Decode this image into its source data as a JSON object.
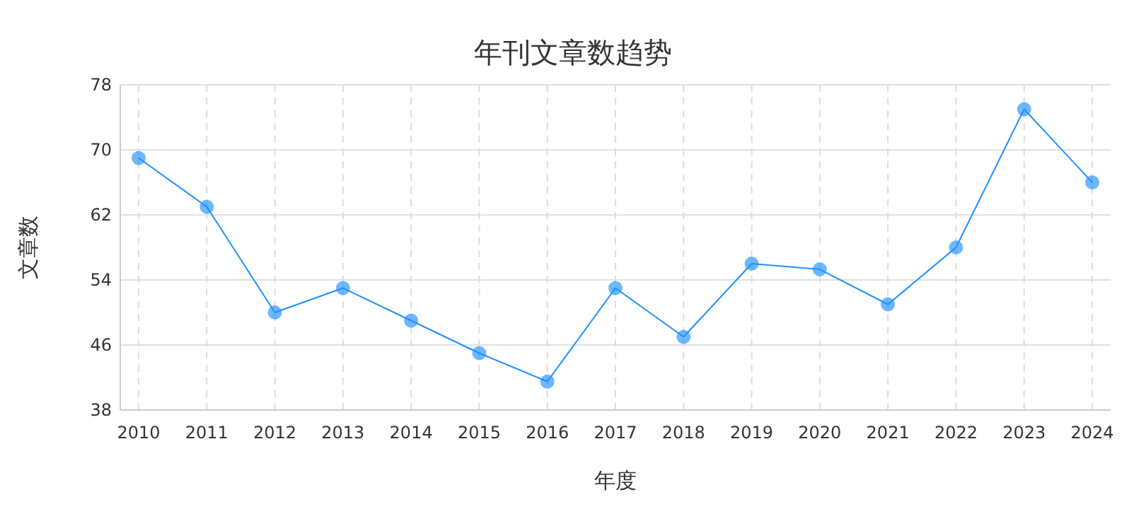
{
  "chart_data": {
    "type": "line",
    "title": "年刊文章数趋势",
    "xlabel": "年度",
    "ylabel": "文章数",
    "categories": [
      "2010",
      "2011",
      "2012",
      "2013",
      "2014",
      "2015",
      "2016",
      "2017",
      "2018",
      "2019",
      "2020",
      "2021",
      "2022",
      "2023",
      "2024"
    ],
    "series": [
      {
        "color": "#1e90ff",
        "values": [
          69,
          63,
          50,
          53,
          49,
          45,
          41.5,
          53,
          47,
          56,
          55.3,
          51,
          58,
          75,
          66
        ]
      }
    ],
    "ylim": [
      38,
      78
    ],
    "yticks": [
      38,
      46,
      54,
      62,
      70,
      78
    ],
    "grid": true,
    "marker": "circle",
    "line_style": "solid"
  }
}
